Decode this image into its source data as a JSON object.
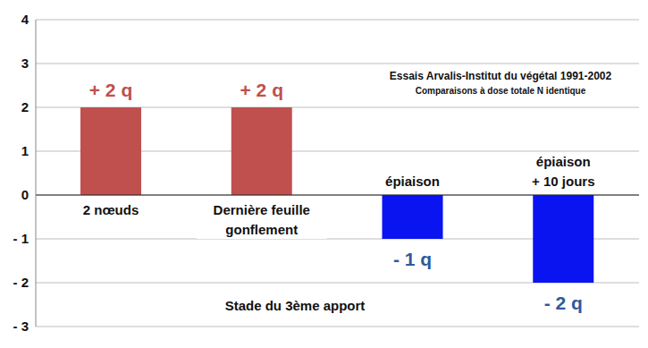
{
  "chart_data": {
    "type": "bar",
    "annotations": [
      "Essais Arvalis-Institut du végétal 1991-2002",
      "Comparaisons à dose totale N identique"
    ],
    "xlabel": "Stade du 3ème apport",
    "categories": [
      "2 nœuds",
      "Dernière feuille gonflement",
      "épiaison",
      "épiaison + 10 jours"
    ],
    "values": [
      2,
      2,
      -1,
      -2
    ],
    "value_labels": [
      "+ 2 q",
      "+ 2 q",
      "- 1 q",
      "- 2 q"
    ],
    "colors": [
      "#c0504d",
      "#c0504d",
      "#0a14f0",
      "#0a14f0"
    ],
    "ylim": [
      -3,
      4
    ],
    "yticks": [
      {
        "value": -3,
        "label": "- 3"
      },
      {
        "value": -2,
        "label": "- 2"
      },
      {
        "value": -1,
        "label": "- 1"
      },
      0,
      1,
      2,
      3,
      4
    ],
    "grid": true,
    "data_labels": true
  }
}
